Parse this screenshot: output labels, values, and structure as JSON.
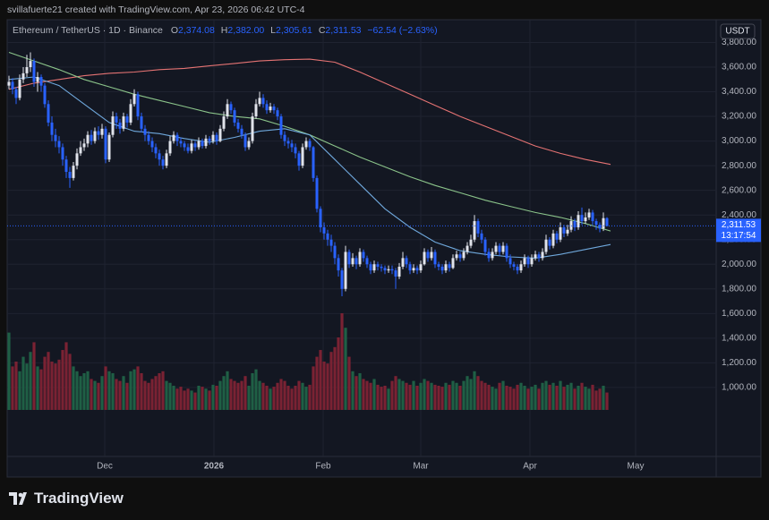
{
  "header": {
    "credit": "svillafuerte21 created with TradingView.com, Apr 23, 2026 06:42 UTC-4"
  },
  "chart_data": {
    "type": "candlestick",
    "legend": {
      "symbol": "Ethereum / TetherUS · 1D · Binance",
      "o": "O",
      "o_value": "2,374.08",
      "h": "H",
      "h_value": "2,382.00",
      "l": "L",
      "l_value": "2,305.61",
      "c": "C",
      "c_value": "2,311.53",
      "change": "−62.54 (−2.63%)"
    },
    "currency": "USDT",
    "last_price": {
      "value": 2311.53,
      "label": "2,311.53"
    },
    "countdown": "13:17:54",
    "up_color": "#e0e3eb",
    "down_color": "#2962ff",
    "volume_up_color": "#1f5f45",
    "volume_down_color": "#7a2233",
    "open": [
      3450,
      3480,
      3420,
      3350,
      3500,
      3550,
      3600,
      3650,
      3480,
      3520,
      3450,
      3300,
      3150,
      3050,
      3000,
      2950,
      2850,
      2750,
      2700,
      2800,
      2900,
      2950,
      2980,
      3050,
      3000,
      3080,
      3050,
      3100,
      2850,
      3050,
      3200,
      3150,
      3100,
      3200,
      3150,
      3300,
      3380,
      3200,
      3100,
      3050,
      3000,
      2950,
      2900,
      2850,
      2800,
      2900,
      3000,
      3050,
      3000,
      2980,
      2950,
      2920,
      2980,
      2950,
      3000,
      2960,
      3020,
      3000,
      3050,
      3000,
      3100,
      3200,
      3300,
      3250,
      3150,
      3100,
      3050,
      2950,
      3000,
      3200,
      3300,
      3350,
      3300,
      3250,
      3280,
      3250,
      3200,
      3050,
      3000,
      2980,
      2950,
      2900,
      2800,
      2950,
      3000,
      2950,
      2700,
      2450,
      2300,
      2250,
      2200,
      2150,
      2050,
      1950,
      1800,
      2100,
      2000,
      2050,
      2000,
      2100,
      2050,
      2000,
      1950,
      2000,
      1980,
      1970,
      1950,
      1960,
      1950,
      1900,
      1980,
      2050,
      2000,
      1950,
      1970,
      1950,
      2000,
      2100,
      2050,
      2100,
      2000,
      1980,
      1950,
      2000,
      1970,
      2050,
      2080,
      2050,
      2100,
      2150,
      2200,
      2350,
      2250,
      2200,
      2100,
      2050,
      2100,
      2150,
      2100,
      2150,
      2050,
      2000,
      1980,
      1950,
      2000,
      2050,
      2000,
      2050,
      2080,
      2050,
      2100,
      2200,
      2150,
      2250,
      2200,
      2300,
      2250,
      2280,
      2350,
      2300,
      2400,
      2350,
      2380,
      2420,
      2350,
      2320,
      2290,
      2374.08
    ],
    "high": [
      3530,
      3510,
      3440,
      3540,
      3600,
      3700,
      3720,
      3670,
      3560,
      3540,
      3470,
      3330,
      3200,
      3100,
      3040,
      2980,
      2880,
      2790,
      2830,
      2940,
      3000,
      3020,
      3080,
      3090,
      3110,
      3120,
      3140,
      3120,
      3070,
      3240,
      3230,
      3180,
      3230,
      3220,
      3340,
      3420,
      3400,
      3230,
      3130,
      3080,
      3030,
      2980,
      2930,
      2880,
      2930,
      3040,
      3080,
      3070,
      3030,
      3000,
      2980,
      3010,
      3000,
      3030,
      3020,
      3050,
      3040,
      3080,
      3070,
      3130,
      3240,
      3340,
      3320,
      3270,
      3180,
      3130,
      3070,
      3030,
      3230,
      3340,
      3400,
      3380,
      3330,
      3310,
      3300,
      3270,
      3220,
      3080,
      3030,
      3010,
      2980,
      2920,
      2980,
      3030,
      3020,
      2960,
      2720,
      2470,
      2340,
      2280,
      2240,
      2180,
      2080,
      1970,
      2150,
      2120,
      2090,
      2070,
      2130,
      2120,
      2070,
      2020,
      2030,
      2020,
      2000,
      1990,
      1990,
      1990,
      1970,
      2010,
      2100,
      2070,
      2020,
      2000,
      1990,
      2030,
      2130,
      2120,
      2140,
      2120,
      2020,
      2000,
      2030,
      2020,
      2080,
      2110,
      2100,
      2130,
      2180,
      2240,
      2400,
      2370,
      2280,
      2220,
      2130,
      2130,
      2180,
      2170,
      2180,
      2170,
      2080,
      2020,
      2000,
      2030,
      2080,
      2070,
      2080,
      2110,
      2100,
      2130,
      2240,
      2220,
      2280,
      2270,
      2340,
      2320,
      2320,
      2390,
      2370,
      2430,
      2460,
      2420,
      2450,
      2440,
      2370,
      2340,
      2420,
      2382
    ],
    "low": [
      3420,
      3380,
      3300,
      3330,
      3470,
      3520,
      3560,
      3440,
      3400,
      3400,
      3270,
      3120,
      3000,
      2950,
      2900,
      2800,
      2700,
      2620,
      2680,
      2770,
      2880,
      2920,
      2950,
      2970,
      2980,
      3010,
      3020,
      2820,
      2830,
      3030,
      3100,
      3060,
      3080,
      3110,
      3130,
      3280,
      3170,
      3070,
      3000,
      2970,
      2910,
      2860,
      2800,
      2770,
      2780,
      2880,
      2980,
      2960,
      2950,
      2920,
      2900,
      2900,
      2920,
      2930,
      2940,
      2940,
      2970,
      2980,
      2970,
      2990,
      3080,
      3180,
      3220,
      3120,
      3070,
      3020,
      2920,
      2930,
      2980,
      3180,
      3280,
      3270,
      3220,
      3230,
      3220,
      3170,
      3020,
      2960,
      2940,
      2910,
      2860,
      2760,
      2780,
      2930,
      2920,
      2670,
      2420,
      2260,
      2200,
      2150,
      2100,
      2000,
      1900,
      1740,
      1780,
      1970,
      1980,
      1960,
      1980,
      2020,
      1970,
      1920,
      1930,
      1950,
      1940,
      1920,
      1930,
      1920,
      1800,
      1880,
      1960,
      1970,
      1920,
      1930,
      1920,
      1930,
      1990,
      2020,
      2030,
      1970,
      1950,
      1920,
      1930,
      1940,
      1960,
      2030,
      2020,
      2030,
      2080,
      2130,
      2180,
      2220,
      2170,
      2070,
      2020,
      2030,
      2080,
      2070,
      2080,
      2020,
      1970,
      1950,
      1920,
      1930,
      1980,
      1970,
      1980,
      2030,
      2020,
      2030,
      2080,
      2120,
      2130,
      2170,
      2180,
      2220,
      2230,
      2260,
      2270,
      2280,
      2320,
      2330,
      2360,
      2320,
      2280,
      2260,
      2270,
      2305.61
    ],
    "close": [
      3480,
      3420,
      3350,
      3500,
      3550,
      3600,
      3650,
      3480,
      3520,
      3450,
      3300,
      3150,
      3050,
      3000,
      2950,
      2850,
      2750,
      2700,
      2800,
      2900,
      2950,
      2980,
      3050,
      3000,
      3080,
      3050,
      3100,
      2850,
      3050,
      3200,
      3150,
      3100,
      3200,
      3150,
      3300,
      3380,
      3200,
      3100,
      3050,
      3000,
      2950,
      2900,
      2850,
      2800,
      2900,
      3000,
      3050,
      3000,
      2980,
      2950,
      2920,
      2980,
      2950,
      3000,
      2960,
      3020,
      3000,
      3050,
      3000,
      3100,
      3200,
      3300,
      3250,
      3150,
      3100,
      3050,
      2950,
      3000,
      3200,
      3300,
      3350,
      3300,
      3250,
      3280,
      3250,
      3200,
      3050,
      3000,
      2980,
      2950,
      2900,
      2800,
      2950,
      3000,
      2950,
      2700,
      2450,
      2300,
      2250,
      2200,
      2150,
      2050,
      1950,
      1800,
      2100,
      2000,
      2050,
      2000,
      2100,
      2050,
      2000,
      1950,
      2000,
      1980,
      1970,
      1950,
      1960,
      1950,
      1900,
      1980,
      2050,
      2000,
      1950,
      1970,
      1950,
      2000,
      2100,
      2050,
      2100,
      2000,
      1980,
      1950,
      2000,
      1970,
      2050,
      2080,
      2050,
      2100,
      2150,
      2200,
      2350,
      2250,
      2200,
      2100,
      2050,
      2100,
      2150,
      2100,
      2150,
      2050,
      2000,
      1980,
      1950,
      2000,
      2050,
      2000,
      2050,
      2080,
      2050,
      2100,
      2200,
      2150,
      2250,
      2200,
      2300,
      2250,
      2280,
      2350,
      2300,
      2400,
      2350,
      2380,
      2420,
      2350,
      2320,
      2290,
      2374.08,
      2311.53
    ],
    "volume": [
      80,
      45,
      50,
      40,
      55,
      48,
      60,
      70,
      45,
      42,
      55,
      60,
      50,
      48,
      52,
      62,
      70,
      58,
      45,
      40,
      35,
      38,
      40,
      32,
      30,
      28,
      35,
      45,
      40,
      38,
      32,
      30,
      35,
      28,
      40,
      42,
      45,
      38,
      30,
      28,
      32,
      35,
      38,
      40,
      30,
      28,
      25,
      22,
      24,
      20,
      22,
      20,
      18,
      25,
      24,
      22,
      20,
      26,
      25,
      30,
      35,
      40,
      32,
      30,
      28,
      30,
      35,
      25,
      38,
      42,
      30,
      28,
      25,
      22,
      24,
      28,
      32,
      30,
      25,
      22,
      25,
      30,
      28,
      24,
      26,
      45,
      55,
      62,
      50,
      48,
      60,
      65,
      75,
      100,
      85,
      55,
      40,
      35,
      38,
      32,
      30,
      28,
      32,
      26,
      24,
      25,
      22,
      30,
      35,
      32,
      30,
      28,
      26,
      30,
      25,
      28,
      32,
      30,
      28,
      26,
      25,
      24,
      28,
      26,
      30,
      28,
      25,
      30,
      35,
      32,
      40,
      35,
      30,
      28,
      26,
      24,
      22,
      28,
      30,
      25,
      24,
      22,
      26,
      28,
      25,
      22,
      24,
      26,
      22,
      28,
      30,
      26,
      28,
      25,
      30,
      24,
      26,
      28,
      22,
      25,
      28,
      24,
      22,
      26,
      20,
      22,
      25,
      18
    ],
    "moving_averages": [
      {
        "color": "#e57373",
        "values": [
          3420,
          3470,
          3500,
          3530,
          3550,
          3560,
          3580,
          3590,
          3610,
          3630,
          3650,
          3660,
          3665,
          3640,
          3560,
          3470,
          3380,
          3290,
          3200,
          3120,
          3040,
          2960,
          2900,
          2850,
          2810
        ]
      },
      {
        "color": "#8bc48a",
        "values": [
          3720,
          3650,
          3580,
          3500,
          3440,
          3380,
          3330,
          3280,
          3230,
          3200,
          3180,
          3120,
          3050,
          2960,
          2870,
          2790,
          2710,
          2640,
          2580,
          2520,
          2470,
          2420,
          2380,
          2330,
          2270
        ]
      },
      {
        "color": "#6fa8dc",
        "values": [
          3500,
          3520,
          3450,
          3300,
          3150,
          3080,
          3060,
          3020,
          2990,
          3030,
          3080,
          3100,
          3050,
          2850,
          2650,
          2450,
          2300,
          2180,
          2110,
          2080,
          2060,
          2050,
          2080,
          2120,
          2160
        ]
      }
    ],
    "ylim": [
      440,
      3985
    ],
    "yticks": [
      {
        "value": 1000,
        "label": "1,000.00"
      },
      {
        "value": 1200,
        "label": "1,200.00"
      },
      {
        "value": 1400,
        "label": "1,400.00"
      },
      {
        "value": 1600,
        "label": "1,600.00"
      },
      {
        "value": 1800,
        "label": "1,800.00"
      },
      {
        "value": 2000,
        "label": "2,000.00"
      },
      {
        "value": 2200,
        "label": "2,200.00"
      },
      {
        "value": 2400,
        "label": "2,400.00"
      },
      {
        "value": 2600,
        "label": "2,600.00"
      },
      {
        "value": 2800,
        "label": "2,800.00"
      },
      {
        "value": 3000,
        "label": "3,000.00"
      },
      {
        "value": 3200,
        "label": "3,200.00"
      },
      {
        "value": 3400,
        "label": "3,400.00"
      },
      {
        "value": 3600,
        "label": "3,600.00"
      },
      {
        "value": 3800,
        "label": "3,800.00"
      }
    ],
    "xtick_labels": [
      "Dec",
      "2026",
      "Feb",
      "Mar",
      "Apr",
      "May"
    ],
    "grid": true
  },
  "footer": {
    "logo": "TradingView"
  }
}
